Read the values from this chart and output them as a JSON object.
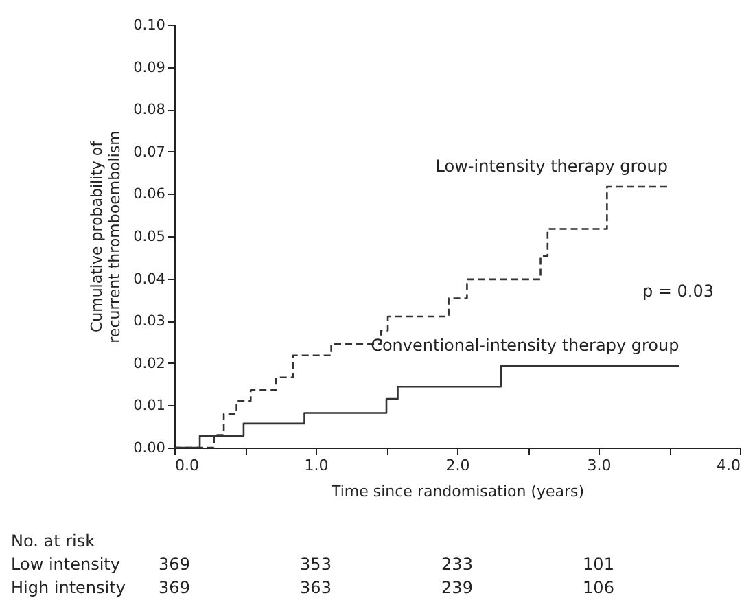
{
  "chart_data": {
    "type": "step",
    "xlabel": "Time since randomisation (years)",
    "ylabel": "Cumulative probability of\nrecurrent thromboembolism",
    "series": [
      {
        "name": "Low-intensity therapy group",
        "color": "#333333",
        "line_style": "dashed",
        "x": [
          0,
          0.28,
          0.35,
          0.44,
          0.54,
          0.72,
          0.84,
          1.11,
          1.46,
          1.51,
          1.94,
          2.07,
          2.59,
          2.64,
          3.06,
          3.49
        ],
        "values": [
          0,
          0.003,
          0.008,
          0.011,
          0.0136,
          0.0166,
          0.0218,
          0.0245,
          0.0277,
          0.031,
          0.0353,
          0.0398,
          0.0453,
          0.0517,
          0.0617,
          0.0617
        ]
      },
      {
        "name": "Conventional-intensity therapy group",
        "color": "#333333",
        "line_style": "solid",
        "x": [
          0,
          0.18,
          0.49,
          0.92,
          1.5,
          1.58,
          2.31,
          3.57
        ],
        "values": [
          0,
          0.0028,
          0.0057,
          0.0082,
          0.0115,
          0.0144,
          0.0193,
          0.0193
        ]
      }
    ],
    "xlim": [
      0,
      4
    ],
    "xticks": [
      {
        "value": 0,
        "label": "0.0"
      },
      {
        "value": 0.5,
        "label": null
      },
      {
        "value": 1,
        "label": "1.0"
      },
      {
        "value": 1.5,
        "label": null
      },
      {
        "value": 2,
        "label": "2.0"
      },
      {
        "value": 2.5,
        "label": null
      },
      {
        "value": 3,
        "label": "3.0"
      },
      {
        "value": 3.5,
        "label": null
      },
      {
        "value": 4,
        "label": "4.0"
      }
    ],
    "ylim": [
      0,
      0.1
    ],
    "yticks": [
      {
        "value": 0,
        "label": "0.00"
      },
      {
        "value": 0.01,
        "label": "0.01"
      },
      {
        "value": 0.02,
        "label": "0.02"
      },
      {
        "value": 0.03,
        "label": "0.03"
      },
      {
        "value": 0.04,
        "label": "0.04"
      },
      {
        "value": 0.05,
        "label": "0.05"
      },
      {
        "value": 0.06,
        "label": "0.06"
      },
      {
        "value": 0.07,
        "label": "0.07"
      },
      {
        "value": 0.08,
        "label": "0.08"
      },
      {
        "value": 0.09,
        "label": "0.09"
      },
      {
        "value": 0.1,
        "label": "0.10"
      }
    ],
    "grid": false,
    "annotations": [
      "p = 0.03",
      "No. at risk",
      "Low intensity",
      "369",
      "353",
      "233",
      "101",
      "High intensity",
      "369",
      "363",
      "239",
      "106"
    ]
  }
}
